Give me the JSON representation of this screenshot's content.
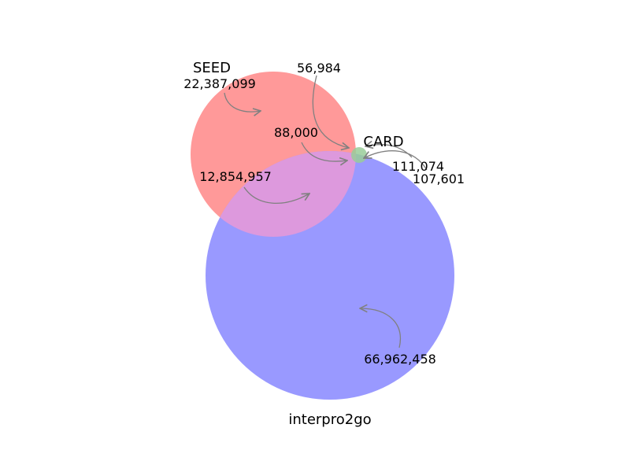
{
  "sets": {
    "seed": {
      "label": "SEED",
      "color": "#ff9999"
    },
    "interpro2go": {
      "label": "interpro2go",
      "color": "#9999ff"
    },
    "card": {
      "label": "CARD",
      "color": "#99cc99"
    }
  },
  "regions": {
    "seed_only": "22,387,099",
    "seed_card": "56,984",
    "seed_interpro_card": "88,000",
    "seed_interpro": "12,854,957",
    "card_only": "111,074",
    "interpro_card": "107,601",
    "interpro_only": "66,962,458"
  },
  "overlap_color": "#dd99dd"
}
